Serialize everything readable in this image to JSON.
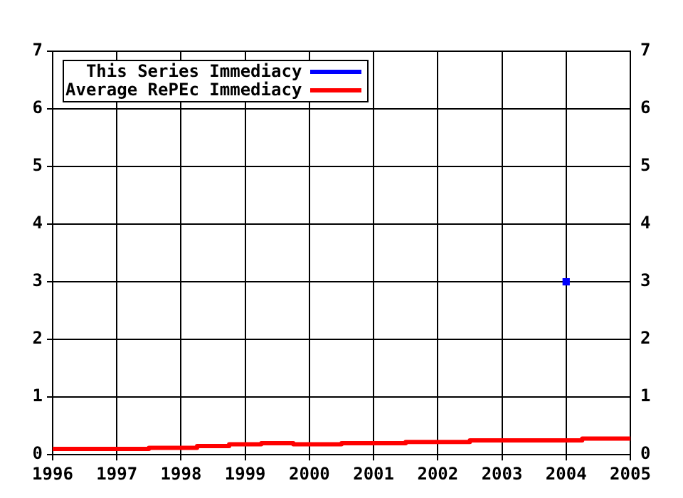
{
  "chart_data": {
    "type": "step",
    "xlim": [
      1996,
      2005
    ],
    "xticks": [
      1996,
      1997,
      1998,
      1999,
      2000,
      2001,
      2002,
      2003,
      2004,
      2005
    ],
    "ylim": [
      0,
      7
    ],
    "yticks": [
      0,
      1,
      2,
      3,
      4,
      5,
      6,
      7
    ],
    "y2lim": [
      0,
      7
    ],
    "y2ticks": [
      0,
      1,
      2,
      3,
      4,
      5,
      6,
      7
    ],
    "grid": true,
    "legend": "top left",
    "series": [
      {
        "name": "This Series Immediacy",
        "color": "#0000ff",
        "marker": "square",
        "x": [
          2004
        ],
        "values": [
          3
        ]
      },
      {
        "name": "Average RePEc Immediacy",
        "color": "#ff0000",
        "marker": "none",
        "x": [
          1996,
          1997.5,
          1998.25,
          1998.75,
          1999.25,
          1999.75,
          2000.5,
          2001.5,
          2002.5,
          2004.25,
          2004.75,
          2005
        ],
        "values": [
          0.08,
          0.1,
          0.12,
          0.15,
          0.18,
          0.2,
          0.18,
          0.2,
          0.22,
          0.25,
          0.28,
          0.28
        ]
      }
    ]
  }
}
